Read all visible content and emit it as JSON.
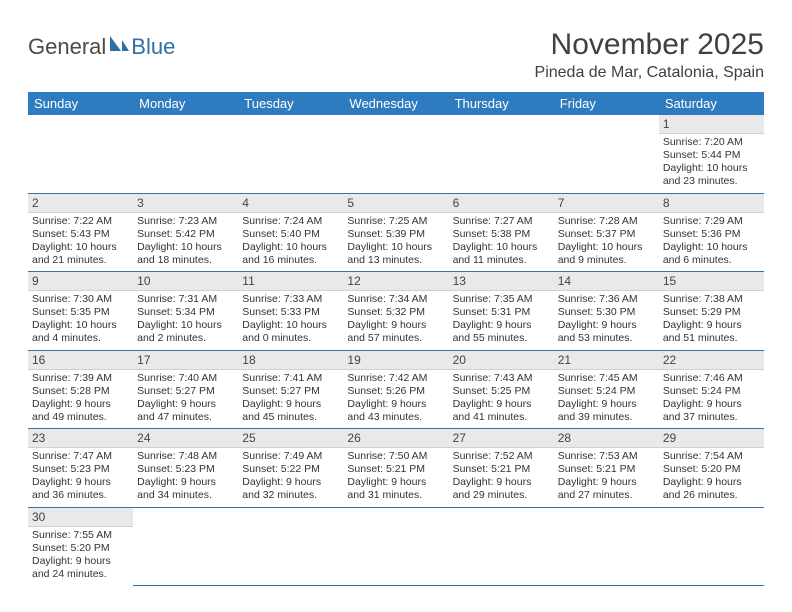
{
  "logo": {
    "part1": "General",
    "part2": "Blue"
  },
  "title": "November 2025",
  "location": "Pineda de Mar, Catalonia, Spain",
  "colors": {
    "header_bg": "#2f7bbf",
    "header_fg": "#ffffff",
    "daynum_bg": "#e9e9e9",
    "row_border": "#3a6fa8",
    "logo_blue": "#2f6fa8"
  },
  "dayHeaders": [
    "Sunday",
    "Monday",
    "Tuesday",
    "Wednesday",
    "Thursday",
    "Friday",
    "Saturday"
  ],
  "weeks": [
    [
      null,
      null,
      null,
      null,
      null,
      null,
      {
        "n": "1",
        "sr": "7:20 AM",
        "ss": "5:44 PM",
        "dl": "10 hours and 23 minutes."
      }
    ],
    [
      {
        "n": "2",
        "sr": "7:22 AM",
        "ss": "5:43 PM",
        "dl": "10 hours and 21 minutes."
      },
      {
        "n": "3",
        "sr": "7:23 AM",
        "ss": "5:42 PM",
        "dl": "10 hours and 18 minutes."
      },
      {
        "n": "4",
        "sr": "7:24 AM",
        "ss": "5:40 PM",
        "dl": "10 hours and 16 minutes."
      },
      {
        "n": "5",
        "sr": "7:25 AM",
        "ss": "5:39 PM",
        "dl": "10 hours and 13 minutes."
      },
      {
        "n": "6",
        "sr": "7:27 AM",
        "ss": "5:38 PM",
        "dl": "10 hours and 11 minutes."
      },
      {
        "n": "7",
        "sr": "7:28 AM",
        "ss": "5:37 PM",
        "dl": "10 hours and 9 minutes."
      },
      {
        "n": "8",
        "sr": "7:29 AM",
        "ss": "5:36 PM",
        "dl": "10 hours and 6 minutes."
      }
    ],
    [
      {
        "n": "9",
        "sr": "7:30 AM",
        "ss": "5:35 PM",
        "dl": "10 hours and 4 minutes."
      },
      {
        "n": "10",
        "sr": "7:31 AM",
        "ss": "5:34 PM",
        "dl": "10 hours and 2 minutes."
      },
      {
        "n": "11",
        "sr": "7:33 AM",
        "ss": "5:33 PM",
        "dl": "10 hours and 0 minutes."
      },
      {
        "n": "12",
        "sr": "7:34 AM",
        "ss": "5:32 PM",
        "dl": "9 hours and 57 minutes."
      },
      {
        "n": "13",
        "sr": "7:35 AM",
        "ss": "5:31 PM",
        "dl": "9 hours and 55 minutes."
      },
      {
        "n": "14",
        "sr": "7:36 AM",
        "ss": "5:30 PM",
        "dl": "9 hours and 53 minutes."
      },
      {
        "n": "15",
        "sr": "7:38 AM",
        "ss": "5:29 PM",
        "dl": "9 hours and 51 minutes."
      }
    ],
    [
      {
        "n": "16",
        "sr": "7:39 AM",
        "ss": "5:28 PM",
        "dl": "9 hours and 49 minutes."
      },
      {
        "n": "17",
        "sr": "7:40 AM",
        "ss": "5:27 PM",
        "dl": "9 hours and 47 minutes."
      },
      {
        "n": "18",
        "sr": "7:41 AM",
        "ss": "5:27 PM",
        "dl": "9 hours and 45 minutes."
      },
      {
        "n": "19",
        "sr": "7:42 AM",
        "ss": "5:26 PM",
        "dl": "9 hours and 43 minutes."
      },
      {
        "n": "20",
        "sr": "7:43 AM",
        "ss": "5:25 PM",
        "dl": "9 hours and 41 minutes."
      },
      {
        "n": "21",
        "sr": "7:45 AM",
        "ss": "5:24 PM",
        "dl": "9 hours and 39 minutes."
      },
      {
        "n": "22",
        "sr": "7:46 AM",
        "ss": "5:24 PM",
        "dl": "9 hours and 37 minutes."
      }
    ],
    [
      {
        "n": "23",
        "sr": "7:47 AM",
        "ss": "5:23 PM",
        "dl": "9 hours and 36 minutes."
      },
      {
        "n": "24",
        "sr": "7:48 AM",
        "ss": "5:23 PM",
        "dl": "9 hours and 34 minutes."
      },
      {
        "n": "25",
        "sr": "7:49 AM",
        "ss": "5:22 PM",
        "dl": "9 hours and 32 minutes."
      },
      {
        "n": "26",
        "sr": "7:50 AM",
        "ss": "5:21 PM",
        "dl": "9 hours and 31 minutes."
      },
      {
        "n": "27",
        "sr": "7:52 AM",
        "ss": "5:21 PM",
        "dl": "9 hours and 29 minutes."
      },
      {
        "n": "28",
        "sr": "7:53 AM",
        "ss": "5:21 PM",
        "dl": "9 hours and 27 minutes."
      },
      {
        "n": "29",
        "sr": "7:54 AM",
        "ss": "5:20 PM",
        "dl": "9 hours and 26 minutes."
      }
    ],
    [
      {
        "n": "30",
        "sr": "7:55 AM",
        "ss": "5:20 PM",
        "dl": "9 hours and 24 minutes."
      },
      null,
      null,
      null,
      null,
      null,
      null
    ]
  ],
  "labels": {
    "sunrise": "Sunrise: ",
    "sunset": "Sunset: ",
    "daylight": "Daylight: "
  }
}
